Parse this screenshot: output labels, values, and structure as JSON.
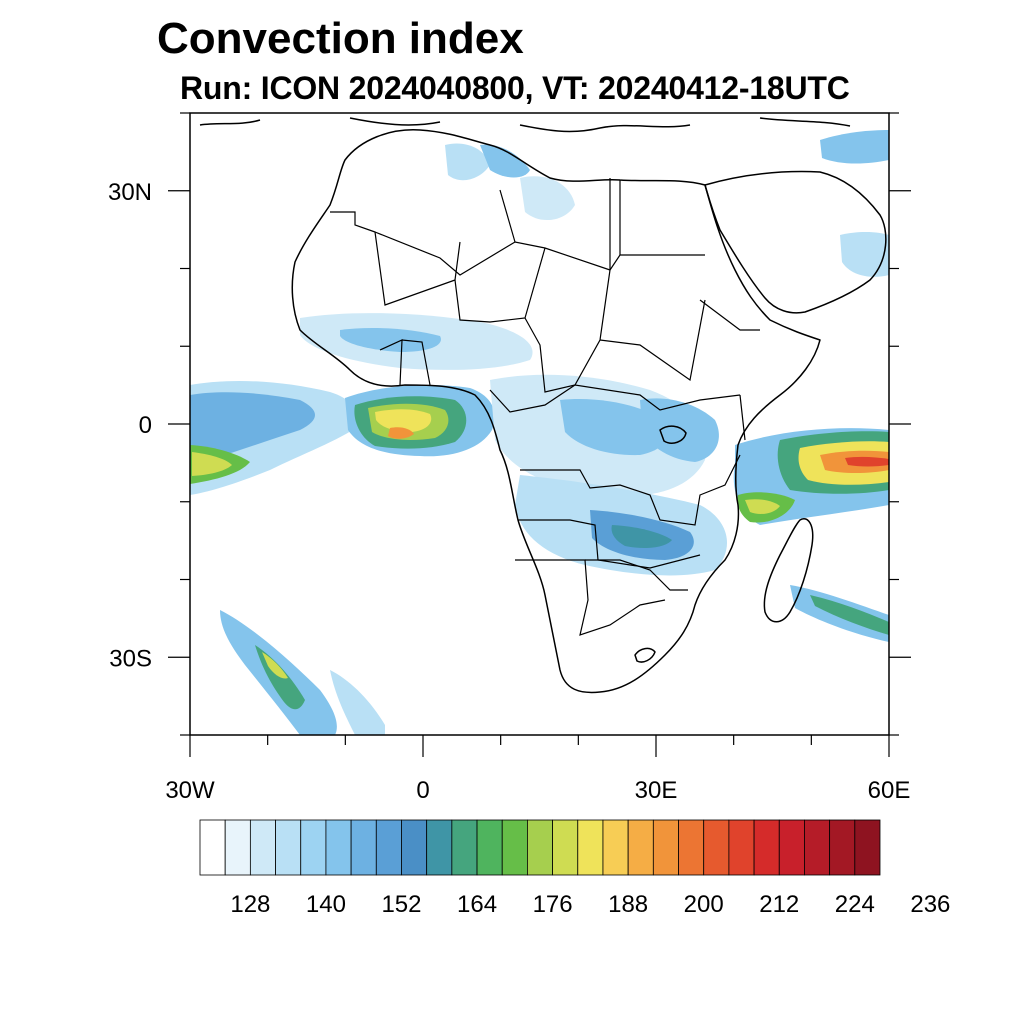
{
  "title": "Convection index",
  "subtitle": "Run: ICON 2024040800,  VT: 20240412-18UTC",
  "map": {
    "lon_range": [
      -30,
      60
    ],
    "lat_range": [
      -40,
      40
    ],
    "lat_labels": [
      {
        "lat": 30,
        "text": "30N"
      },
      {
        "lat": 0,
        "text": "0"
      },
      {
        "lat": -30,
        "text": "30S"
      }
    ],
    "lon_labels": [
      {
        "lon": -30,
        "text": "30W"
      },
      {
        "lon": 0,
        "text": "0"
      },
      {
        "lon": 30,
        "text": "30E"
      },
      {
        "lon": 60,
        "text": "60E"
      }
    ],
    "minor_lon_ticks": [
      -30,
      -20,
      -10,
      0,
      10,
      20,
      30,
      40,
      50,
      60
    ],
    "minor_lat_ticks": [
      -40,
      -30,
      -20,
      -10,
      0,
      10,
      20,
      30,
      40
    ]
  },
  "colorbar": {
    "colors": [
      "#ffffff",
      "#e8f4fb",
      "#cfe9f7",
      "#b9e0f5",
      "#9dd3f2",
      "#84c4ec",
      "#6db1e2",
      "#5a9fd6",
      "#4a8fc6",
      "#3f95a6",
      "#45a57e",
      "#4fb45e",
      "#66be48",
      "#a6cf4e",
      "#cfdc52",
      "#efe35a",
      "#f7cd55",
      "#f5ad45",
      "#f1943a",
      "#ec7533",
      "#e65a2e",
      "#e0432c",
      "#d52b2a",
      "#c8202b",
      "#b51c28",
      "#a31824",
      "#8e1320"
    ],
    "labels": [
      "128",
      "140",
      "152",
      "164",
      "176",
      "188",
      "200",
      "212",
      "224",
      "236"
    ]
  }
}
